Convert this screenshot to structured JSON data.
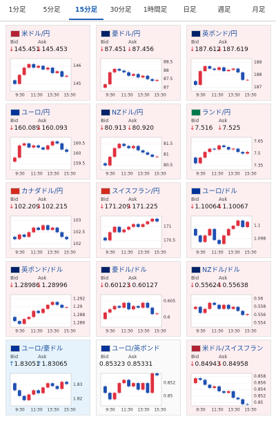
{
  "tabs": [
    "1分足",
    "5分足",
    "15分足",
    "30分足",
    "1時間足",
    "日足",
    "週足",
    "月足"
  ],
  "active_tab": 2,
  "bid_label": "Bid",
  "ask_label": "Ask",
  "time_labels": [
    "9:30",
    "11:30",
    "13:30",
    "15:30"
  ],
  "cards": [
    {
      "title": "米ドル/円",
      "flag": "#b22234",
      "mood": "down",
      "bid_arrow": "↓",
      "bid": "145.451",
      "ask_arrow": "↓",
      "ask": "145.453",
      "ylim": [
        144.6,
        146.4
      ],
      "yticks": [
        145,
        146
      ],
      "closes": [
        145.2,
        145.0,
        145.5,
        145.9,
        146.1,
        145.9,
        146.0,
        145.8,
        145.9,
        145.6,
        145.7,
        145.4,
        145.45
      ]
    },
    {
      "title": "豪ドル/円",
      "flag": "#012169",
      "mood": "down",
      "bid_arrow": "↓",
      "bid": "87.451",
      "ask_arrow": "↓",
      "ask": "87.456",
      "ylim": [
        86.8,
        88.7
      ],
      "yticks": [
        87,
        87.5,
        88,
        88.5
      ],
      "closes": [
        87.0,
        87.2,
        87.9,
        88.1,
        88.0,
        87.9,
        87.7,
        87.8,
        87.6,
        87.7,
        87.5,
        87.4,
        87.45
      ]
    },
    {
      "title": "英ポンド/円",
      "flag": "#012169",
      "mood": "down",
      "bid_arrow": "↓",
      "bid": "187.612",
      "ask_arrow": "↓",
      "ask": "187.619",
      "ylim": [
        186.7,
        189.3
      ],
      "yticks": [
        187,
        188,
        189
      ],
      "closes": [
        187.5,
        187.2,
        188.3,
        188.7,
        188.5,
        188.4,
        188.6,
        188.3,
        188.4,
        188.5,
        188.2,
        187.6,
        187.6
      ]
    },
    {
      "title": "ユーロ/円",
      "flag": "#003399",
      "mood": "down",
      "bid_arrow": "↓",
      "bid": "160.089",
      "ask_arrow": "↓",
      "ask": "160.093",
      "ylim": [
        159.2,
        160.8
      ],
      "yticks": [
        159.5,
        160,
        160.5
      ],
      "closes": [
        159.6,
        159.8,
        160.4,
        160.5,
        160.3,
        160.4,
        160.3,
        160.2,
        160.4,
        160.6,
        160.5,
        160.2,
        160.09
      ]
    },
    {
      "title": "NZドル/円",
      "flag": "#012169",
      "mood": "down",
      "bid_arrow": "↓",
      "bid": "80.913",
      "ask_arrow": "↓",
      "ask": "80.920",
      "ylim": [
        80.3,
        81.8
      ],
      "yticks": [
        80.5,
        81,
        81.5
      ],
      "closes": [
        80.6,
        80.5,
        80.9,
        81.3,
        81.5,
        81.4,
        81.3,
        81.4,
        81.2,
        81.1,
        81.0,
        80.9,
        80.91
      ]
    },
    {
      "title": "ランド/円",
      "flag": "#007a4d",
      "mood": "down",
      "bid_arrow": "↓",
      "bid": "7.516",
      "ask_arrow": "↓",
      "ask": "7.525",
      "ylim": [
        7.3,
        7.7
      ],
      "yticks": [
        7.35,
        7.5,
        7.65
      ],
      "closes": [
        7.45,
        7.38,
        7.45,
        7.52,
        7.56,
        7.55,
        7.6,
        7.58,
        7.55,
        7.56,
        7.52,
        7.5,
        7.52
      ]
    },
    {
      "title": "カナダドル/円",
      "flag": "#d52b1e",
      "mood": "down",
      "bid_arrow": "↓",
      "bid": "102.209",
      "ask_arrow": "↓",
      "ask": "102.215",
      "ylim": [
        101.8,
        103.2
      ],
      "yticks": [
        102,
        102.5,
        103
      ],
      "closes": [
        102.3,
        102.2,
        102.4,
        102.3,
        102.5,
        102.7,
        102.6,
        102.8,
        102.6,
        102.7,
        102.5,
        102.3,
        102.2
      ]
    },
    {
      "title": "スイスフラン/円",
      "flag": "#d52b1e",
      "mood": "down",
      "bid_arrow": "↓",
      "bid": "171.209",
      "ask_arrow": "↓",
      "ask": "171.225",
      "ylim": [
        170.2,
        171.4
      ],
      "yticks": [
        170.5,
        171
      ],
      "closes": [
        170.6,
        170.5,
        170.8,
        171.0,
        170.8,
        170.9,
        171.0,
        171.1,
        171.0,
        171.1,
        171.2,
        171.3,
        171.2
      ]
    },
    {
      "title": "ユーロ/ドル",
      "flag": "#003399",
      "mood": "down",
      "bid_arrow": "↓",
      "bid": "1.10064",
      "ask_arrow": "↓",
      "ask": "1.10067",
      "ylim": [
        1.0965,
        1.1015
      ],
      "yticks": [
        1.098,
        1.1
      ],
      "closes": [
        1.0995,
        1.0985,
        1.0975,
        1.0985,
        1.0995,
        1.0978,
        1.0972,
        1.0985,
        1.0995,
        1.1,
        1.1008,
        1.0998,
        1.1006
      ]
    },
    {
      "title": "英ポンド/ドル",
      "flag": "#012169",
      "mood": "down",
      "bid_arrow": "↓",
      "bid": "1.28986",
      "ask_arrow": "↓",
      "ask": "1.28996",
      "ylim": [
        1.285,
        1.293
      ],
      "yticks": [
        1.286,
        1.288,
        1.29,
        1.292
      ],
      "closes": [
        1.2875,
        1.2865,
        1.2858,
        1.287,
        1.2875,
        1.289,
        1.2885,
        1.2895,
        1.2905,
        1.2912,
        1.2905,
        1.2898,
        1.2899
      ]
    },
    {
      "title": "豪ドル/ドル",
      "flag": "#012169",
      "mood": "down",
      "bid_arrow": "↓",
      "bid": "0.60123",
      "ask_arrow": "↓",
      "ask": "0.60127",
      "ylim": [
        0.597,
        0.607
      ],
      "yticks": [
        0.6,
        0.605
      ],
      "closes": [
        0.5995,
        0.6015,
        0.6025,
        0.6035,
        0.603,
        0.6045,
        0.6025,
        0.6035,
        0.603,
        0.6045,
        0.603,
        0.601,
        0.6012
      ]
    },
    {
      "title": "NZドル/ドル",
      "flag": "#012169",
      "mood": "down",
      "bid_arrow": "↓",
      "bid": "0.55624",
      "ask_arrow": "↓",
      "ask": "0.55638",
      "ylim": [
        0.553,
        0.561
      ],
      "yticks": [
        0.554,
        0.556,
        0.558,
        0.56
      ],
      "closes": [
        0.5575,
        0.558,
        0.5565,
        0.5575,
        0.559,
        0.5585,
        0.5575,
        0.5585,
        0.5575,
        0.558,
        0.557,
        0.556,
        0.5562
      ]
    },
    {
      "title": "ユーロ/豪ドル",
      "flag": "#003399",
      "mood": "up",
      "bid_arrow": "↑",
      "bid": "1.83051",
      "ask_arrow": "↑",
      "ask": "1.83065",
      "ylim": [
        1.815,
        1.838
      ],
      "yticks": [
        1.82,
        1.83
      ],
      "closes": [
        1.831,
        1.826,
        1.822,
        1.819,
        1.823,
        1.826,
        1.824,
        1.828,
        1.831,
        1.829,
        1.827,
        1.832,
        1.8305
      ]
    },
    {
      "title": "ユーロ/英ポンド",
      "flag": "#003399",
      "mood": "flat",
      "bid": "0.85323",
      "ask": "0.85331",
      "ylim": [
        0.8485,
        0.8535
      ],
      "yticks": [
        0.85,
        0.852
      ],
      "closes": [
        0.8515,
        0.8505,
        0.8495,
        0.8505,
        0.852,
        0.8525,
        0.8515,
        0.852,
        0.851,
        0.852,
        0.8505,
        0.8535,
        0.8532
      ]
    },
    {
      "title": "米ドル/スイスフラン",
      "flag": "#b22234",
      "mood": "down",
      "bid_arrow": "↓",
      "bid": "0.84943",
      "ask_arrow": "↓",
      "ask": "0.84958",
      "ylim": [
        0.849,
        0.859
      ],
      "yticks": [
        0.85,
        0.852,
        0.854,
        0.856,
        0.858
      ],
      "closes": [
        0.856,
        0.8575,
        0.857,
        0.8555,
        0.8545,
        0.855,
        0.8535,
        0.853,
        0.8535,
        0.8515,
        0.851,
        0.8495,
        0.8494
      ]
    }
  ]
}
